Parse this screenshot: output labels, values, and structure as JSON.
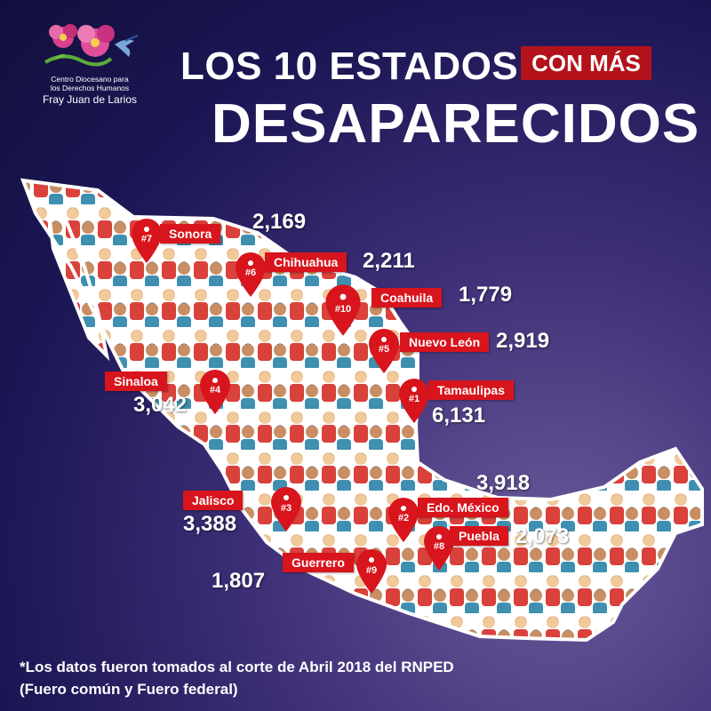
{
  "logo": {
    "line1": "Centro Diocesano para",
    "line2": "los Derechos Humanos",
    "line3": "Fray Juan de Larios"
  },
  "title": {
    "line1": "LOS 10 ESTADOS",
    "badge": "CON MÁS",
    "line2": "DESAPARECIDOS"
  },
  "states": [
    {
      "rank": "#7",
      "name": "Sonora",
      "value": "2,169"
    },
    {
      "rank": "#6",
      "name": "Chihuahua",
      "value": "2,211"
    },
    {
      "rank": "#10",
      "name": "Coahuila",
      "value": "1,779"
    },
    {
      "rank": "#5",
      "name": "Nuevo León",
      "value": "2,919"
    },
    {
      "rank": "#4",
      "name": "Sinaloa",
      "value": "3,042"
    },
    {
      "rank": "#1",
      "name": "Tamaulipas",
      "value": "6,131"
    },
    {
      "rank": "#3",
      "name": "Jalisco",
      "value": "3,388"
    },
    {
      "rank": "#2",
      "name": "Edo. México",
      "value": "3,918"
    },
    {
      "rank": "#8",
      "name": "Puebla",
      "value": "2,073"
    },
    {
      "rank": "#9",
      "name": "Guerrero",
      "value": "1,807"
    }
  ],
  "footnote": {
    "line1": "*Los datos fueron tomados al corte de Abril 2018 del RNPED",
    "line2": "(Fuero común y Fuero federal)"
  },
  "colors": {
    "accent": "#d8141c",
    "badge": "#b3121b",
    "map": "#ffffff"
  }
}
